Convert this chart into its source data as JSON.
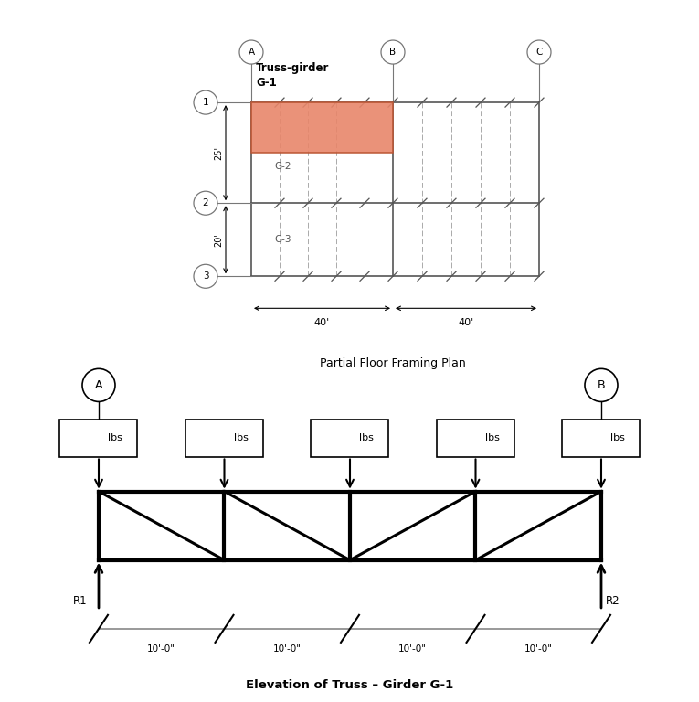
{
  "bg_color": "#ffffff",
  "salmon_color": "#E8866A",
  "plan_title": "Partial Floor Framing Plan",
  "elevation_title": "Elevation of Truss – Girder G-1",
  "col_labels": [
    "A",
    "B",
    "C"
  ],
  "row_labels": [
    "1",
    "2",
    "3"
  ],
  "dim_25": "25'",
  "dim_20": "20'",
  "dim_40a": "40'",
  "dim_40b": "40'",
  "girder_label_1": "Truss-girder",
  "girder_label_2": "G-1",
  "girder_label_g2": "G-2",
  "girder_label_g3": "G-3",
  "span_labels": [
    "10'-0\"",
    "10'-0\"",
    "10'-0\"",
    "10'-0\""
  ],
  "lbs_label": "lbs",
  "r1_label": "R1",
  "r2_label": "R2"
}
